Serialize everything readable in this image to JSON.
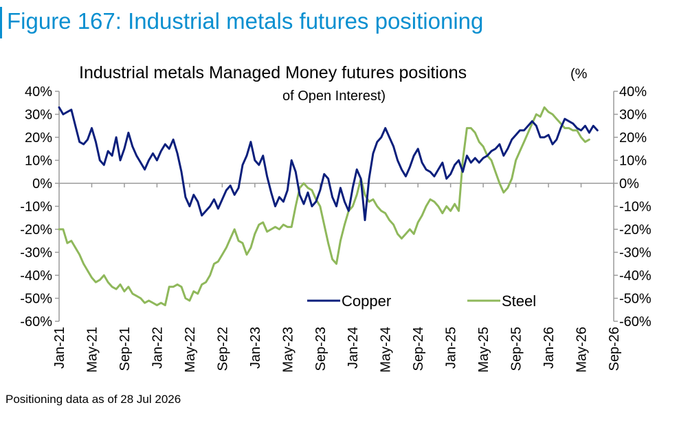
{
  "figure": {
    "title": "Figure 167: Industrial metals futures positioning",
    "footnote": "Positioning data as of 28 Jul 2026"
  },
  "chart_data": {
    "type": "line",
    "title": "Industrial metals Managed Money futures positions",
    "title_suffix_line1": "(%",
    "title_line2": "of Open Interest)",
    "xlabel": "",
    "ylabel": "",
    "ylim": [
      -60,
      40
    ],
    "yticks": [
      -60,
      -50,
      -40,
      -30,
      -20,
      -10,
      0,
      10,
      20,
      30,
      40
    ],
    "ytick_labels": [
      "-60%",
      "-50%",
      "-40%",
      "-30%",
      "-20%",
      "-10%",
      "0%",
      "10%",
      "20%",
      "30%",
      "40%"
    ],
    "secondary_axis": true,
    "xlim": [
      0,
      68
    ],
    "xticks": [
      0,
      4,
      8,
      12,
      16,
      20,
      24,
      28,
      32,
      36,
      40,
      44,
      48,
      52,
      56,
      60,
      64,
      68
    ],
    "xtick_labels": [
      "Jan-21",
      "May-21",
      "Sep-21",
      "Jan-22",
      "May-22",
      "Sep-22",
      "Jan-23",
      "May-23",
      "Sep-23",
      "Jan-24",
      "May-24",
      "Sep-24",
      "Jan-25",
      "May-25",
      "Sep-25",
      "Jan-26",
      "May-26",
      "Sep-26"
    ],
    "x_units": "months since Jan-21",
    "grid": false,
    "legend_position": "bottom-right",
    "series": [
      {
        "name": "Copper",
        "color": "#0b1f7c",
        "points": [
          [
            0,
            33
          ],
          [
            0.5,
            30
          ],
          [
            1,
            31
          ],
          [
            1.5,
            32
          ],
          [
            2,
            25
          ],
          [
            2.5,
            18
          ],
          [
            3,
            17
          ],
          [
            3.5,
            19
          ],
          [
            4,
            24
          ],
          [
            4.5,
            18
          ],
          [
            5,
            10
          ],
          [
            5.5,
            8
          ],
          [
            6,
            14
          ],
          [
            6.5,
            12
          ],
          [
            7,
            20
          ],
          [
            7.5,
            10
          ],
          [
            8,
            15
          ],
          [
            8.5,
            22
          ],
          [
            9,
            16
          ],
          [
            9.5,
            12
          ],
          [
            10,
            9
          ],
          [
            10.5,
            6
          ],
          [
            11,
            10
          ],
          [
            11.5,
            13
          ],
          [
            12,
            10
          ],
          [
            12.5,
            14
          ],
          [
            13,
            17
          ],
          [
            13.5,
            15
          ],
          [
            14,
            19
          ],
          [
            14.5,
            13
          ],
          [
            15,
            5
          ],
          [
            15.5,
            -6
          ],
          [
            16,
            -10
          ],
          [
            16.5,
            -5
          ],
          [
            17,
            -8
          ],
          [
            17.5,
            -14
          ],
          [
            18,
            -12
          ],
          [
            18.5,
            -10
          ],
          [
            19,
            -7
          ],
          [
            19.5,
            -11
          ],
          [
            20,
            -7
          ],
          [
            20.5,
            -3
          ],
          [
            21,
            -1
          ],
          [
            21.5,
            -5
          ],
          [
            22,
            -2
          ],
          [
            22.5,
            8
          ],
          [
            23,
            12
          ],
          [
            23.5,
            18
          ],
          [
            24,
            10
          ],
          [
            24.5,
            8
          ],
          [
            25,
            12
          ],
          [
            25.5,
            3
          ],
          [
            26,
            -4
          ],
          [
            26.5,
            -10
          ],
          [
            27,
            -6
          ],
          [
            27.5,
            -8
          ],
          [
            28,
            -3
          ],
          [
            28.5,
            10
          ],
          [
            29,
            5
          ],
          [
            29.5,
            -5
          ],
          [
            30,
            -9
          ],
          [
            30.5,
            -4
          ],
          [
            31,
            -10
          ],
          [
            31.5,
            -8
          ],
          [
            32,
            -3
          ],
          [
            32.5,
            4
          ],
          [
            33,
            2
          ],
          [
            33.5,
            -6
          ],
          [
            34,
            -10
          ],
          [
            34.5,
            -2
          ],
          [
            35,
            -8
          ],
          [
            35.5,
            -12
          ],
          [
            36,
            -2
          ],
          [
            36.5,
            6
          ],
          [
            37,
            2
          ],
          [
            37.5,
            -16
          ],
          [
            38,
            2
          ],
          [
            38.5,
            13
          ],
          [
            39,
            18
          ],
          [
            39.5,
            20
          ],
          [
            40,
            24
          ],
          [
            40.5,
            20
          ],
          [
            41,
            16
          ],
          [
            41.5,
            10
          ],
          [
            42,
            6
          ],
          [
            42.5,
            3
          ],
          [
            43,
            7
          ],
          [
            43.5,
            12
          ],
          [
            44,
            15
          ],
          [
            44.5,
            9
          ],
          [
            45,
            6
          ],
          [
            45.5,
            5
          ],
          [
            46,
            3
          ],
          [
            46.5,
            6
          ],
          [
            47,
            9
          ],
          [
            47.5,
            2
          ],
          [
            48,
            4
          ],
          [
            48.5,
            8
          ],
          [
            49,
            10
          ],
          [
            49.5,
            5
          ],
          [
            50,
            12
          ],
          [
            50.5,
            9
          ],
          [
            51,
            11
          ],
          [
            51.5,
            9
          ],
          [
            52,
            11
          ],
          [
            52.5,
            12
          ],
          [
            53,
            14
          ],
          [
            53.5,
            15
          ],
          [
            54,
            17
          ],
          [
            54.5,
            12
          ],
          [
            55,
            15
          ],
          [
            55.5,
            19
          ],
          [
            56,
            21
          ],
          [
            56.5,
            23
          ],
          [
            57,
            23
          ],
          [
            57.5,
            25
          ],
          [
            58,
            27
          ],
          [
            58.5,
            25
          ],
          [
            59,
            20
          ],
          [
            59.5,
            20
          ],
          [
            60,
            21
          ],
          [
            60.5,
            17
          ],
          [
            61,
            19
          ],
          [
            61.5,
            24
          ],
          [
            62,
            28
          ],
          [
            62.5,
            27
          ],
          [
            63,
            26
          ],
          [
            63.5,
            24
          ],
          [
            64,
            23
          ],
          [
            64.5,
            25
          ],
          [
            65,
            22
          ],
          [
            65.5,
            25
          ],
          [
            66,
            23
          ]
        ]
      },
      {
        "name": "Steel",
        "color": "#8fb85b",
        "points": [
          [
            0,
            -20
          ],
          [
            0.5,
            -20
          ],
          [
            1,
            -26
          ],
          [
            1.5,
            -25
          ],
          [
            2,
            -28
          ],
          [
            2.5,
            -31
          ],
          [
            3,
            -35
          ],
          [
            3.5,
            -38
          ],
          [
            4,
            -41
          ],
          [
            4.5,
            -43
          ],
          [
            5,
            -42
          ],
          [
            5.5,
            -40
          ],
          [
            6,
            -43
          ],
          [
            6.5,
            -45
          ],
          [
            7,
            -46
          ],
          [
            7.5,
            -44
          ],
          [
            8,
            -47
          ],
          [
            8.5,
            -45
          ],
          [
            9,
            -48
          ],
          [
            9.5,
            -49
          ],
          [
            10,
            -50
          ],
          [
            10.5,
            -52
          ],
          [
            11,
            -51
          ],
          [
            11.5,
            -52
          ],
          [
            12,
            -53
          ],
          [
            12.5,
            -52
          ],
          [
            13,
            -53
          ],
          [
            13.5,
            -45
          ],
          [
            14,
            -45
          ],
          [
            14.5,
            -44
          ],
          [
            15,
            -45
          ],
          [
            15.5,
            -50
          ],
          [
            16,
            -51
          ],
          [
            16.5,
            -47
          ],
          [
            17,
            -48
          ],
          [
            17.5,
            -44
          ],
          [
            18,
            -43
          ],
          [
            18.5,
            -40
          ],
          [
            19,
            -35
          ],
          [
            19.5,
            -34
          ],
          [
            20,
            -31
          ],
          [
            20.5,
            -28
          ],
          [
            21,
            -24
          ],
          [
            21.5,
            -20
          ],
          [
            22,
            -25
          ],
          [
            22.5,
            -26
          ],
          [
            23,
            -31
          ],
          [
            23.5,
            -28
          ],
          [
            24,
            -22
          ],
          [
            24.5,
            -18
          ],
          [
            25,
            -17
          ],
          [
            25.5,
            -21
          ],
          [
            26,
            -20
          ],
          [
            26.5,
            -19
          ],
          [
            27,
            -20
          ],
          [
            27.5,
            -18
          ],
          [
            28,
            -19
          ],
          [
            28.5,
            -19
          ],
          [
            29,
            -10
          ],
          [
            29.5,
            -2
          ],
          [
            30,
            0
          ],
          [
            30.5,
            -2
          ],
          [
            31,
            -3
          ],
          [
            31.5,
            -7
          ],
          [
            32,
            -10
          ],
          [
            32.5,
            -18
          ],
          [
            33,
            -26
          ],
          [
            33.5,
            -33
          ],
          [
            34,
            -35
          ],
          [
            34.5,
            -25
          ],
          [
            35,
            -18
          ],
          [
            35.5,
            -12
          ],
          [
            36,
            -10
          ],
          [
            36.5,
            -5
          ],
          [
            37,
            2
          ],
          [
            37.5,
            -5
          ],
          [
            38,
            -8
          ],
          [
            38.5,
            -7
          ],
          [
            39,
            -10
          ],
          [
            39.5,
            -12
          ],
          [
            40,
            -13
          ],
          [
            40.5,
            -16
          ],
          [
            41,
            -18
          ],
          [
            41.5,
            -22
          ],
          [
            42,
            -24
          ],
          [
            42.5,
            -22
          ],
          [
            43,
            -20
          ],
          [
            43.5,
            -22
          ],
          [
            44,
            -17
          ],
          [
            44.5,
            -14
          ],
          [
            45,
            -10
          ],
          [
            45.5,
            -7
          ],
          [
            46,
            -8
          ],
          [
            46.5,
            -10
          ],
          [
            47,
            -13
          ],
          [
            47.5,
            -10
          ],
          [
            48,
            -12
          ],
          [
            48.5,
            -9
          ],
          [
            49,
            -12
          ],
          [
            49.5,
            10
          ],
          [
            50,
            24
          ],
          [
            50.5,
            24
          ],
          [
            51,
            22
          ],
          [
            51.5,
            18
          ],
          [
            52,
            16
          ],
          [
            52.5,
            12
          ],
          [
            53,
            10
          ],
          [
            53.5,
            5
          ],
          [
            54,
            0
          ],
          [
            54.5,
            -4
          ],
          [
            55,
            -2
          ],
          [
            55.5,
            2
          ],
          [
            56,
            10
          ],
          [
            56.5,
            14
          ],
          [
            57,
            18
          ],
          [
            57.5,
            22
          ],
          [
            58,
            26
          ],
          [
            58.5,
            30
          ],
          [
            59,
            29
          ],
          [
            59.5,
            33
          ],
          [
            60,
            31
          ],
          [
            60.5,
            30
          ],
          [
            61,
            28
          ],
          [
            61.5,
            26
          ],
          [
            62,
            24
          ],
          [
            62.5,
            24
          ],
          [
            63,
            23
          ],
          [
            63.5,
            23
          ],
          [
            64,
            20
          ],
          [
            64.5,
            18
          ],
          [
            65,
            19
          ]
        ]
      }
    ]
  }
}
